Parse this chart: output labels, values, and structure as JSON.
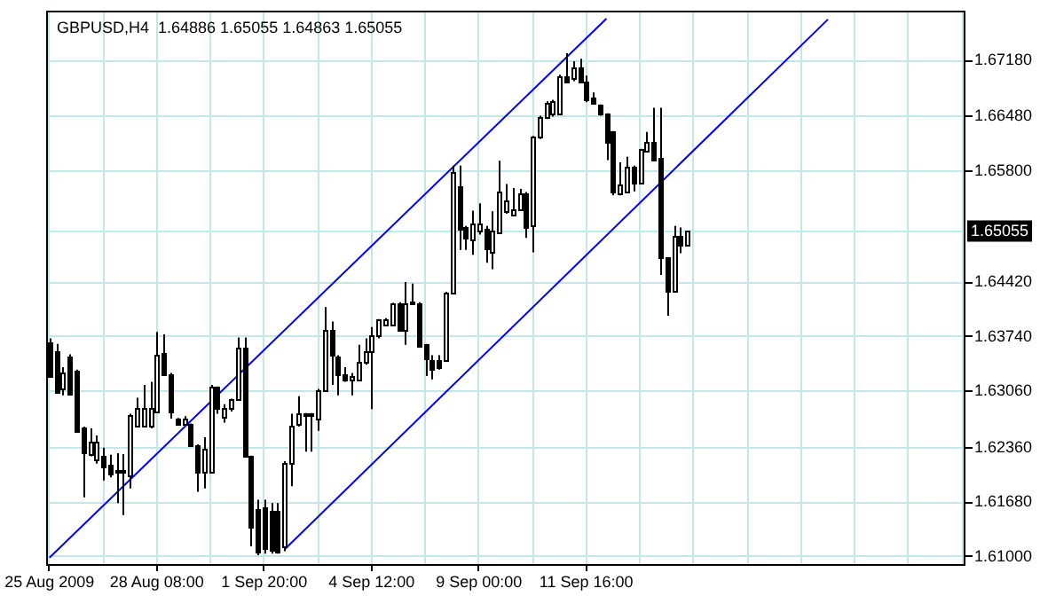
{
  "chart_data": {
    "type": "candlestick",
    "title": "GBPUSD,H4  1.64886 1.65055 1.64863 1.65055",
    "categories": [
      "25 Aug 2009",
      null,
      null,
      null,
      null,
      null,
      null,
      null,
      null,
      null,
      null,
      null,
      null,
      null,
      null,
      null,
      "28 Aug 08:00",
      null,
      null,
      null,
      null,
      null,
      null,
      null,
      null,
      null,
      null,
      null,
      null,
      null,
      null,
      null,
      "1 Sep 20:00",
      null,
      null,
      null,
      null,
      null,
      null,
      null,
      null,
      null,
      null,
      null,
      null,
      null,
      null,
      null,
      "4 Sep 12:00",
      null,
      null,
      null,
      null,
      null,
      null,
      null,
      null,
      null,
      null,
      null,
      null,
      null,
      null,
      null,
      "9 Sep 00:00",
      null,
      null,
      null,
      null,
      null,
      null,
      null,
      null,
      null,
      null,
      null,
      null,
      null,
      null,
      null,
      "11 Sep 16:00",
      null,
      null,
      null,
      null,
      null,
      null,
      null,
      null,
      null,
      null,
      null,
      null,
      null,
      null,
      null,
      null,
      null,
      null,
      null,
      null,
      null,
      null,
      null,
      null,
      null,
      null,
      null,
      null,
      null,
      null,
      null,
      null,
      null,
      null,
      null,
      null,
      null,
      null,
      null,
      null,
      null,
      null,
      null,
      null,
      null,
      null,
      null,
      null,
      null,
      null,
      null,
      null,
      null,
      null,
      null,
      null
    ],
    "ohlc": [
      [
        1.6368,
        1.6372,
        1.6326,
        1.6327
      ],
      [
        1.6357,
        1.6365,
        1.6303,
        1.6307
      ],
      [
        1.6311,
        1.6336,
        1.6301,
        1.633
      ],
      [
        1.635,
        1.6352,
        1.6302,
        1.6303
      ],
      [
        1.6332,
        1.6333,
        1.6257,
        1.6258
      ],
      [
        1.626,
        1.6262,
        1.6174,
        1.6229
      ],
      [
        1.6229,
        1.626,
        1.6225,
        1.6244
      ],
      [
        1.6222,
        1.6251,
        1.6216,
        1.6244
      ],
      [
        1.6226,
        1.6236,
        1.6195,
        1.6212
      ],
      [
        1.6215,
        1.6227,
        1.6199,
        1.6205
      ],
      [
        1.6205,
        1.6229,
        1.6167,
        1.6208
      ],
      [
        1.6205,
        1.6228,
        1.6152,
        1.6208
      ],
      [
        1.6203,
        1.6278,
        1.6185,
        1.6277
      ],
      [
        1.6262,
        1.6298,
        1.6261,
        1.6285
      ],
      [
        1.6264,
        1.6314,
        1.6263,
        1.6285
      ],
      [
        1.6262,
        1.6318,
        1.626,
        1.6285
      ],
      [
        1.6282,
        1.638,
        1.6281,
        1.6352
      ],
      [
        1.6354,
        1.6377,
        1.6327,
        1.6328
      ],
      [
        1.6328,
        1.6329,
        1.6272,
        1.6282
      ],
      [
        1.6272,
        1.6273,
        1.6264,
        1.6265
      ],
      [
        1.6265,
        1.6275,
        1.6264,
        1.6271
      ],
      [
        1.6265,
        1.6266,
        1.6238,
        1.6239
      ],
      [
        1.6239,
        1.624,
        1.6181,
        1.6206
      ],
      [
        1.6206,
        1.6249,
        1.6185,
        1.6235
      ],
      [
        1.6206,
        1.6314,
        1.6205,
        1.6311
      ],
      [
        1.6311,
        1.6312,
        1.6278,
        1.6285
      ],
      [
        1.6275,
        1.629,
        1.6267,
        1.6285
      ],
      [
        1.6285,
        1.6297,
        1.6281,
        1.6296
      ],
      [
        1.6296,
        1.6373,
        1.6295,
        1.6361
      ],
      [
        1.6361,
        1.6373,
        1.6225,
        1.6226
      ],
      [
        1.6225,
        1.6226,
        1.6113,
        1.6137
      ],
      [
        1.616,
        1.6171,
        1.6102,
        1.6106
      ],
      [
        1.6162,
        1.6171,
        1.6104,
        1.6111
      ],
      [
        1.6158,
        1.6167,
        1.6104,
        1.6109
      ],
      [
        1.6158,
        1.6167,
        1.6104,
        1.6108
      ],
      [
        1.6113,
        1.6219,
        1.6107,
        1.6217
      ],
      [
        1.6217,
        1.6278,
        1.6188,
        1.6264
      ],
      [
        1.6264,
        1.63,
        1.6262,
        1.6278
      ],
      [
        1.6275,
        1.6279,
        1.6231,
        1.6278
      ],
      [
        1.6278,
        1.6279,
        1.6231,
        1.6275
      ],
      [
        1.6272,
        1.6309,
        1.6257,
        1.6308
      ],
      [
        1.6308,
        1.6411,
        1.6307,
        1.6382
      ],
      [
        1.6382,
        1.6393,
        1.6314,
        1.635
      ],
      [
        1.635,
        1.6351,
        1.6301,
        1.6328
      ],
      [
        1.6328,
        1.6336,
        1.6318,
        1.6321
      ],
      [
        1.6321,
        1.6329,
        1.6301,
        1.6325
      ],
      [
        1.6321,
        1.6364,
        1.632,
        1.6343
      ],
      [
        1.6343,
        1.6372,
        1.6339,
        1.6356
      ],
      [
        1.6356,
        1.6386,
        1.6284,
        1.6375
      ],
      [
        1.6375,
        1.6396,
        1.6372,
        1.6395
      ],
      [
        1.6389,
        1.6397,
        1.6388,
        1.6395
      ],
      [
        1.6389,
        1.6416,
        1.6388,
        1.6415
      ],
      [
        1.6416,
        1.6417,
        1.6381,
        1.6382
      ],
      [
        1.6382,
        1.6442,
        1.6364,
        1.6416
      ],
      [
        1.6415,
        1.644,
        1.6414,
        1.6418
      ],
      [
        1.6416,
        1.6417,
        1.6361,
        1.6364
      ],
      [
        1.6364,
        1.6365,
        1.6325,
        1.6346
      ],
      [
        1.6346,
        1.6351,
        1.6321,
        1.6336
      ],
      [
        1.6344,
        1.6351,
        1.6333,
        1.6336
      ],
      [
        1.6344,
        1.643,
        1.6343,
        1.6429
      ],
      [
        1.6429,
        1.6587,
        1.6428,
        1.658
      ],
      [
        1.6562,
        1.6587,
        1.6482,
        1.6508
      ],
      [
        1.651,
        1.6512,
        1.6482,
        1.6497
      ],
      [
        1.6495,
        1.6531,
        1.6476,
        1.6514
      ],
      [
        1.6505,
        1.654,
        1.6501,
        1.6514
      ],
      [
        1.6508,
        1.6512,
        1.6466,
        1.6483
      ],
      [
        1.6481,
        1.653,
        1.6458,
        1.6507
      ],
      [
        1.6505,
        1.6593,
        1.6504,
        1.6555
      ],
      [
        1.653,
        1.6564,
        1.6527,
        1.6544
      ],
      [
        1.6526,
        1.6559,
        1.6524,
        1.6533
      ],
      [
        1.6533,
        1.6558,
        1.6532,
        1.6553
      ],
      [
        1.6553,
        1.6554,
        1.6497,
        1.6512
      ],
      [
        1.6512,
        1.6624,
        1.6479,
        1.6623
      ],
      [
        1.6623,
        1.6649,
        1.662,
        1.6648
      ],
      [
        1.6648,
        1.6667,
        1.6645,
        1.6666
      ],
      [
        1.6653,
        1.6669,
        1.6648,
        1.6668
      ],
      [
        1.6653,
        1.67,
        1.6652,
        1.6699
      ],
      [
        1.6699,
        1.6727,
        1.6692,
        1.6693
      ],
      [
        1.6695,
        1.6717,
        1.6692,
        1.6709
      ],
      [
        1.6709,
        1.672,
        1.669,
        1.6691
      ],
      [
        1.6691,
        1.6699,
        1.6666,
        1.6668
      ],
      [
        1.6672,
        1.6678,
        1.6665,
        1.6666
      ],
      [
        1.6662,
        1.6663,
        1.6649,
        1.665
      ],
      [
        1.6651,
        1.6652,
        1.6594,
        1.6616
      ],
      [
        1.6629,
        1.663,
        1.655,
        1.6555
      ],
      [
        1.6553,
        1.6591,
        1.655,
        1.6563
      ],
      [
        1.6555,
        1.6598,
        1.6554,
        1.6586
      ],
      [
        1.6586,
        1.6587,
        1.6555,
        1.6566
      ],
      [
        1.6566,
        1.6608,
        1.6565,
        1.6607
      ],
      [
        1.6605,
        1.6629,
        1.6604,
        1.6617
      ],
      [
        1.6617,
        1.6659,
        1.6595,
        1.6596
      ],
      [
        1.6596,
        1.6659,
        1.6451,
        1.6472
      ],
      [
        1.6472,
        1.6473,
        1.64,
        1.6429
      ],
      [
        1.643,
        1.6512,
        1.6429,
        1.6499
      ],
      [
        1.6499,
        1.651,
        1.6478,
        1.6488
      ],
      [
        1.64886,
        1.65055,
        1.64863,
        1.65055
      ],
      null,
      null,
      null,
      null,
      null,
      null,
      null,
      null,
      null,
      null,
      null,
      null,
      null,
      null,
      null,
      null,
      null,
      null,
      null,
      null,
      null,
      null,
      null,
      null,
      null,
      null,
      null,
      null,
      null,
      null,
      null,
      null,
      null,
      null,
      null,
      null,
      null,
      null,
      null,
      null,
      null
    ],
    "colors": [
      "#000000",
      "#000000",
      "#ffffff",
      "#000000",
      "#000000",
      "#000000",
      "#ffffff",
      "#ffffff",
      "#000000",
      "#000000",
      "#ffffff",
      "#ffffff",
      "#ffffff",
      "#ffffff",
      "#ffffff",
      "#ffffff",
      "#ffffff",
      "#000000",
      "#000000",
      "#000000",
      "#ffffff",
      "#000000",
      "#000000",
      "#ffffff",
      "#ffffff",
      "#000000",
      "#ffffff",
      "#ffffff",
      "#ffffff",
      "#000000",
      "#000000",
      "#000000",
      "#000000",
      "#000000",
      "#000000",
      "#ffffff",
      "#ffffff",
      "#ffffff",
      "#ffffff",
      "#000000",
      "#ffffff",
      "#ffffff",
      "#000000",
      "#000000",
      "#000000",
      "#ffffff",
      "#ffffff",
      "#ffffff",
      "#ffffff",
      "#ffffff",
      "#ffffff",
      "#ffffff",
      "#000000",
      "#ffffff",
      "#ffffff",
      "#000000",
      "#000000",
      "#000000",
      "#000000",
      "#ffffff",
      "#ffffff",
      "#000000",
      "#000000",
      "#ffffff",
      "#ffffff",
      "#000000",
      "#ffffff",
      "#ffffff",
      "#ffffff",
      "#ffffff",
      "#ffffff",
      "#000000",
      "#ffffff",
      "#ffffff",
      "#ffffff",
      "#ffffff",
      "#ffffff",
      "#000000",
      "#ffffff",
      "#000000",
      "#000000",
      "#000000",
      "#000000",
      "#000000",
      "#000000",
      "#ffffff",
      "#ffffff",
      "#000000",
      "#ffffff",
      "#ffffff",
      "#000000",
      "#000000",
      "#000000",
      "#ffffff",
      "#000000",
      "#ffffff",
      null,
      null,
      null,
      null,
      null,
      null,
      null,
      null,
      null,
      null,
      null,
      null,
      null,
      null,
      null,
      null,
      null,
      null,
      null,
      null,
      null,
      null,
      null,
      null,
      null,
      null,
      null,
      null,
      null,
      null,
      null,
      null,
      null,
      null,
      null,
      null,
      null,
      null,
      null,
      null,
      null
    ],
    "series": [
      {
        "type": "line",
        "color": "#0000ff",
        "values": [
          1.6099,
          null,
          null,
          null,
          null,
          null,
          null,
          null,
          null,
          null,
          null,
          null,
          null,
          null,
          null,
          null,
          null,
          null,
          null,
          null,
          null,
          null,
          null,
          null,
          null,
          null,
          null,
          null,
          null,
          null,
          null,
          null,
          null,
          null,
          null,
          null,
          null,
          null,
          null,
          null,
          null,
          null,
          null,
          null,
          null,
          null,
          null,
          null,
          null,
          null,
          null,
          null,
          null,
          null,
          null,
          null,
          null,
          null,
          null,
          null,
          null,
          null,
          null,
          null,
          null,
          null,
          null,
          null,
          null,
          null,
          null,
          null,
          null,
          null,
          null,
          null,
          null,
          null,
          null,
          null,
          null,
          null,
          null,
          1.677,
          null,
          null,
          null,
          null,
          null,
          null,
          null,
          null,
          null,
          null,
          null,
          null,
          null,
          null,
          null,
          null,
          null,
          null,
          null,
          null,
          null,
          null,
          null,
          null,
          null,
          null,
          null,
          null,
          null,
          null,
          null,
          null,
          null,
          null,
          null,
          null,
          null,
          null,
          null,
          null,
          null,
          null,
          null,
          null,
          null,
          null,
          null,
          null,
          null,
          null,
          null,
          null,
          null
        ]
      },
      {
        "type": "line",
        "color": "#0000ff",
        "values": [
          null,
          null,
          null,
          null,
          null,
          null,
          null,
          null,
          null,
          null,
          null,
          null,
          null,
          null,
          null,
          null,
          null,
          null,
          null,
          null,
          null,
          null,
          null,
          null,
          null,
          null,
          null,
          null,
          null,
          null,
          null,
          null,
          null,
          null,
          null,
          1.6109,
          null,
          null,
          null,
          null,
          null,
          null,
          null,
          null,
          null,
          null,
          null,
          null,
          null,
          null,
          null,
          null,
          null,
          null,
          null,
          null,
          null,
          null,
          null,
          null,
          null,
          null,
          null,
          null,
          null,
          null,
          null,
          null,
          null,
          null,
          null,
          null,
          null,
          null,
          null,
          null,
          null,
          null,
          null,
          null,
          null,
          null,
          null,
          null,
          null,
          null,
          null,
          null,
          null,
          null,
          null,
          null,
          null,
          null,
          null,
          null,
          null,
          null,
          null,
          null,
          null,
          null,
          null,
          null,
          null,
          null,
          null,
          null,
          null,
          null,
          null,
          null,
          null,
          null,
          null,
          null,
          1.6769,
          null,
          null,
          null,
          null,
          null,
          null,
          null,
          null,
          null,
          null,
          null,
          null,
          null,
          null,
          null,
          null,
          null,
          null,
          null,
          null
        ]
      }
    ],
    "ylim": [
      1.6091,
      1.6779
    ],
    "yticks": [
      {
        "value": 1.6718,
        "label": "1.67180"
      },
      {
        "value": 1.6648,
        "label": "1.66480"
      },
      {
        "value": 1.658,
        "label": "1.65800"
      },
      {
        "value": 1.6442,
        "label": "1.64420"
      },
      {
        "value": 1.6374,
        "label": "1.63740"
      },
      {
        "value": 1.6306,
        "label": "1.63060"
      },
      {
        "value": 1.6236,
        "label": "1.62360"
      },
      {
        "value": 1.6168,
        "label": "1.61680"
      },
      {
        "value": 1.61,
        "label": "1.61000"
      }
    ],
    "ref_lines": [
      {
        "axis": "y",
        "value": 1.65055,
        "label": "1.65055",
        "color": "#b4f0f0"
      }
    ],
    "grid": true,
    "marker": "none"
  }
}
